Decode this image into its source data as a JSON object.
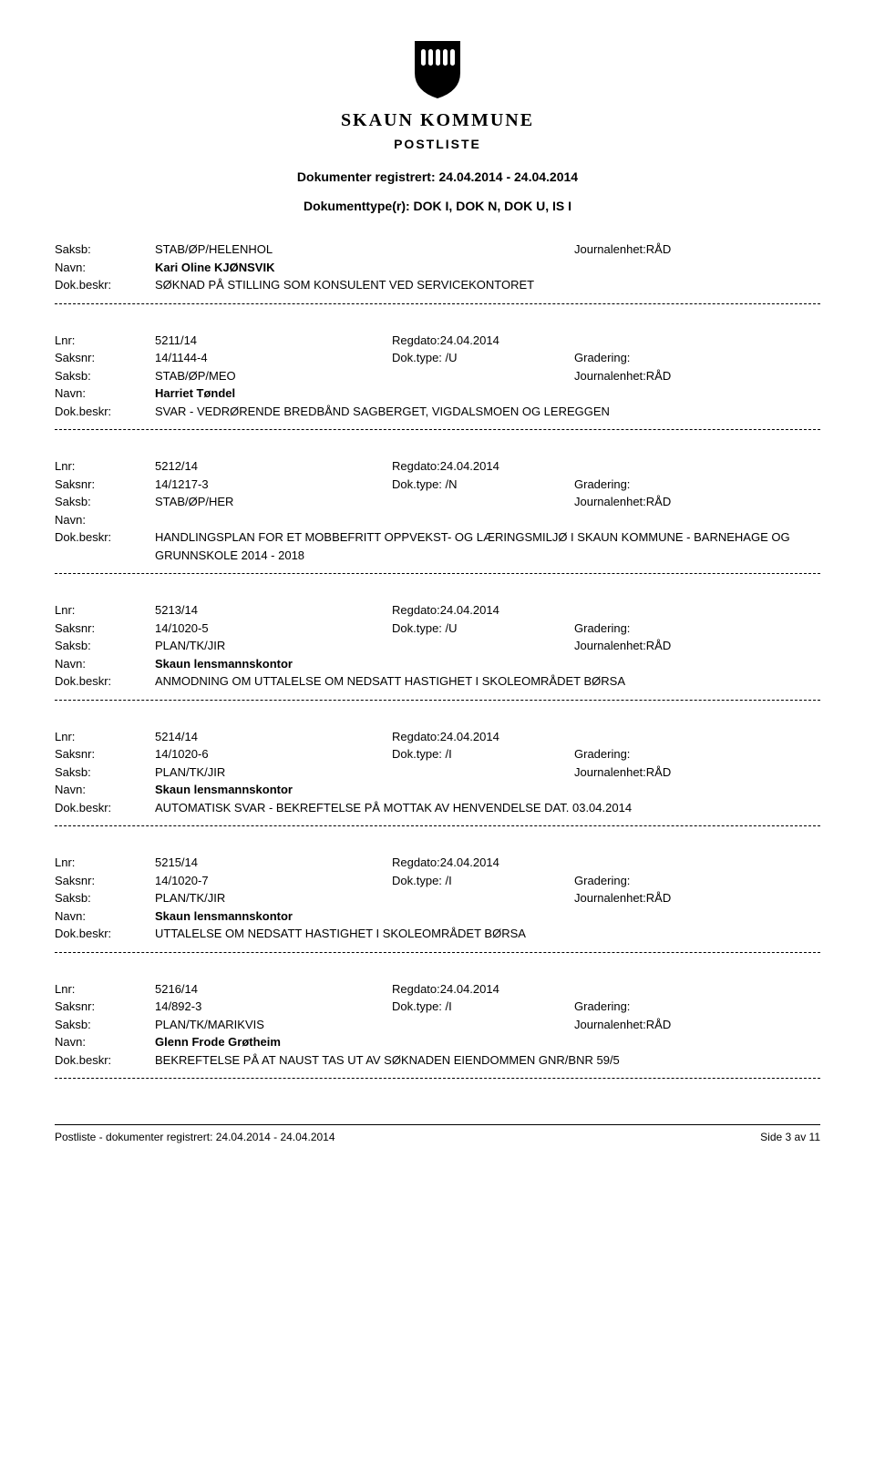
{
  "header": {
    "org_name": "SKAUN KOMMUNE",
    "postliste": "POSTLISTE",
    "date_range": "Dokumenter registrert: 24.04.2014 - 24.04.2014",
    "doc_types": "Dokumenttype(r): DOK I, DOK N, DOK U, IS I"
  },
  "labels": {
    "lnr": "Lnr:",
    "regdato": "Regdato:",
    "saksnr": "Saksnr:",
    "doktype": "Dok.type:",
    "gradering": "Gradering:",
    "saksb": "Saksb:",
    "journalenhet": "Journalenhet:",
    "navn": "Navn:",
    "dokbeskr": "Dok.beskr:"
  },
  "entries": [
    {
      "lnr": "",
      "regdato": "",
      "saksnr": "",
      "doktype": "",
      "gradering": "",
      "saksb": "STAB/ØP/HELENHOL",
      "journalenhet": "RÅD",
      "navn": "Kari Oline KJØNSVIK",
      "dokbeskr": "SØKNAD PÅ STILLING SOM KONSULENT VED SERVICEKONTORET",
      "show_top": false
    },
    {
      "lnr": "5211/14",
      "regdato": "24.04.2014",
      "saksnr": "14/1144-4",
      "doktype": "/U",
      "gradering": "",
      "saksb": "STAB/ØP/MEO",
      "journalenhet": "RÅD",
      "navn": "Harriet Tøndel",
      "dokbeskr": "SVAR - VEDRØRENDE BREDBÅND SAGBERGET, VIGDALSMOEN OG LEREGGEN",
      "show_top": true
    },
    {
      "lnr": "5212/14",
      "regdato": "24.04.2014",
      "saksnr": "14/1217-3",
      "doktype": "/N",
      "gradering": "",
      "saksb": "STAB/ØP/HER",
      "journalenhet": "RÅD",
      "navn": "",
      "dokbeskr": "HANDLINGSPLAN FOR ET MOBBEFRITT OPPVEKST- OG LÆRINGSMILJØ I SKAUN KOMMUNE - BARNEHAGE OG GRUNNSKOLE 2014 - 2018",
      "show_top": true
    },
    {
      "lnr": "5213/14",
      "regdato": "24.04.2014",
      "saksnr": "14/1020-5",
      "doktype": "/U",
      "gradering": "",
      "saksb": "PLAN/TK/JIR",
      "journalenhet": "RÅD",
      "navn": "Skaun lensmannskontor",
      "dokbeskr": "ANMODNING OM  UTTALELSE OM NEDSATT HASTIGHET I SKOLEOMRÅDET BØRSA",
      "show_top": true
    },
    {
      "lnr": "5214/14",
      "regdato": "24.04.2014",
      "saksnr": "14/1020-6",
      "doktype": "/I",
      "gradering": "",
      "saksb": "PLAN/TK/JIR",
      "journalenhet": "RÅD",
      "navn": "Skaun lensmannskontor",
      "dokbeskr": "AUTOMATISK SVAR - BEKREFTELSE PÅ MOTTAK AV HENVENDELSE DAT. 03.04.2014",
      "show_top": true
    },
    {
      "lnr": "5215/14",
      "regdato": "24.04.2014",
      "saksnr": "14/1020-7",
      "doktype": "/I",
      "gradering": "",
      "saksb": "PLAN/TK/JIR",
      "journalenhet": "RÅD",
      "navn": "Skaun lensmannskontor",
      "dokbeskr": "UTTALELSE OM NEDSATT HASTIGHET I SKOLEOMRÅDET BØRSA",
      "show_top": true
    },
    {
      "lnr": "5216/14",
      "regdato": "24.04.2014",
      "saksnr": "14/892-3",
      "doktype": "/I",
      "gradering": "",
      "saksb": "PLAN/TK/MARIKVIS",
      "journalenhet": "RÅD",
      "navn": "Glenn Frode Grøtheim",
      "dokbeskr": "BEKREFTELSE PÅ AT NAUST TAS UT AV SØKNADEN EIENDOMMEN GNR/BNR 59/5",
      "show_top": true
    }
  ],
  "footer": {
    "left": "Postliste - dokumenter registrert: 24.04.2014 - 24.04.2014",
    "right": "Side 3 av 11"
  },
  "colors": {
    "text": "#000000",
    "background": "#ffffff",
    "divider": "#000000"
  }
}
